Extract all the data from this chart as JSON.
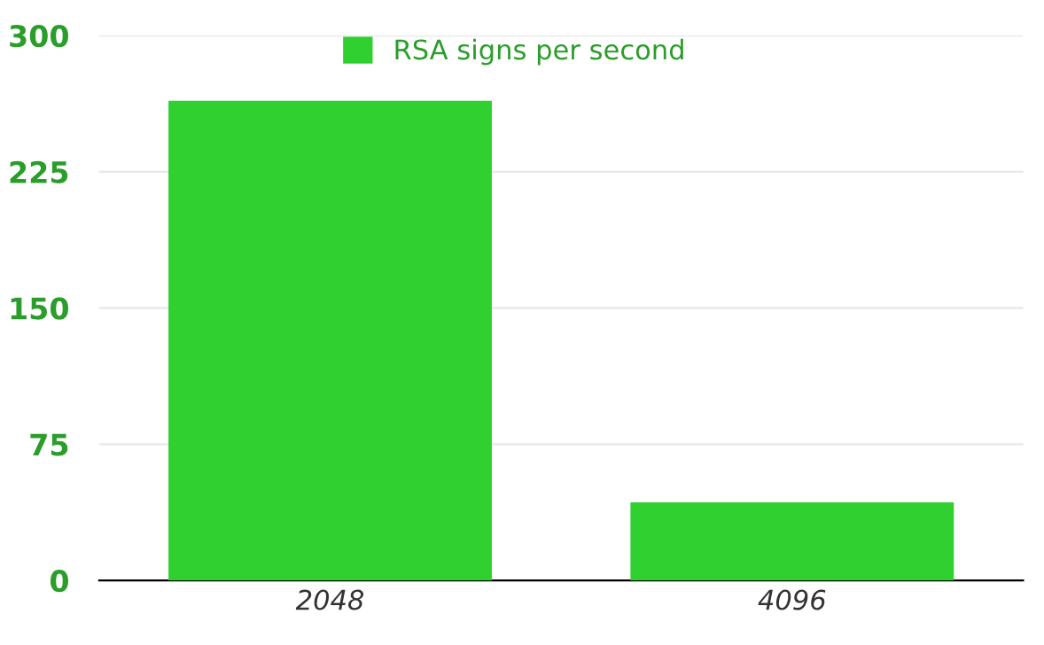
{
  "chart_data": {
    "type": "bar",
    "categories": [
      "2048",
      "4096"
    ],
    "series": [
      {
        "name": "RSA signs per second",
        "color": "#2fd02f",
        "values": [
          264,
          43
        ]
      }
    ],
    "ylim": [
      0,
      300
    ],
    "yticks": [
      0,
      75,
      150,
      225,
      300
    ],
    "grid": "y",
    "legend": "top"
  }
}
